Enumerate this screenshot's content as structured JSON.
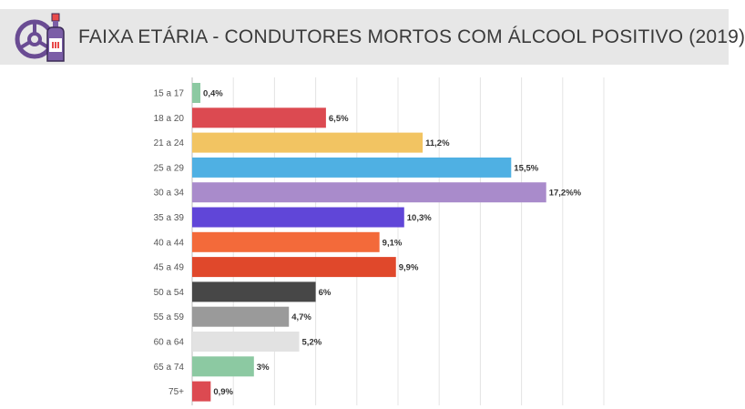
{
  "title": "FAIXA ETÁRIA - CONDUTORES MORTOS COM ÁLCOOL POSITIVO (2019)",
  "logo": {
    "icon": "steering-wheel-and-bottle-icon",
    "colors": [
      "#7b5ea7",
      "#6a4c93",
      "#e84b4b"
    ]
  },
  "chart_data": {
    "type": "bar",
    "orientation": "horizontal",
    "title": "FAIXA ETÁRIA - CONDUTORES MORTOS COM ÁLCOOL POSITIVO (2019)",
    "xlabel": "",
    "ylabel": "",
    "xlim": [
      0,
      20
    ],
    "grid": true,
    "legend": "none",
    "categories": [
      "15 a 17",
      "18 a 20",
      "21 a 24",
      "25 a 29",
      "30 a 34",
      "35 a 39",
      "40 a 44",
      "45 a 49",
      "50 a 54",
      "55 a 59",
      "60 a 64",
      "65 a 74",
      "75+"
    ],
    "values": [
      0.4,
      6.5,
      11.2,
      15.5,
      17.2,
      10.3,
      9.1,
      9.9,
      6,
      4.7,
      5.2,
      3,
      0.9
    ],
    "data_labels": [
      "0,4%",
      "6,5%",
      "11,2%",
      "15,5%",
      "17,2%%",
      "10,3%",
      "9,1%",
      "9,9%",
      "6%",
      "4,7%",
      "5,2%",
      "3%",
      "0,9%"
    ],
    "colors": [
      "#8cc9a2",
      "#dc4a51",
      "#f2c462",
      "#4fb0e3",
      "#a98bcb",
      "#6046d8",
      "#f36a3a",
      "#e0482b",
      "#474747",
      "#9a9a9a",
      "#e2e2e2",
      "#8cc9a2",
      "#dc4a51"
    ]
  }
}
